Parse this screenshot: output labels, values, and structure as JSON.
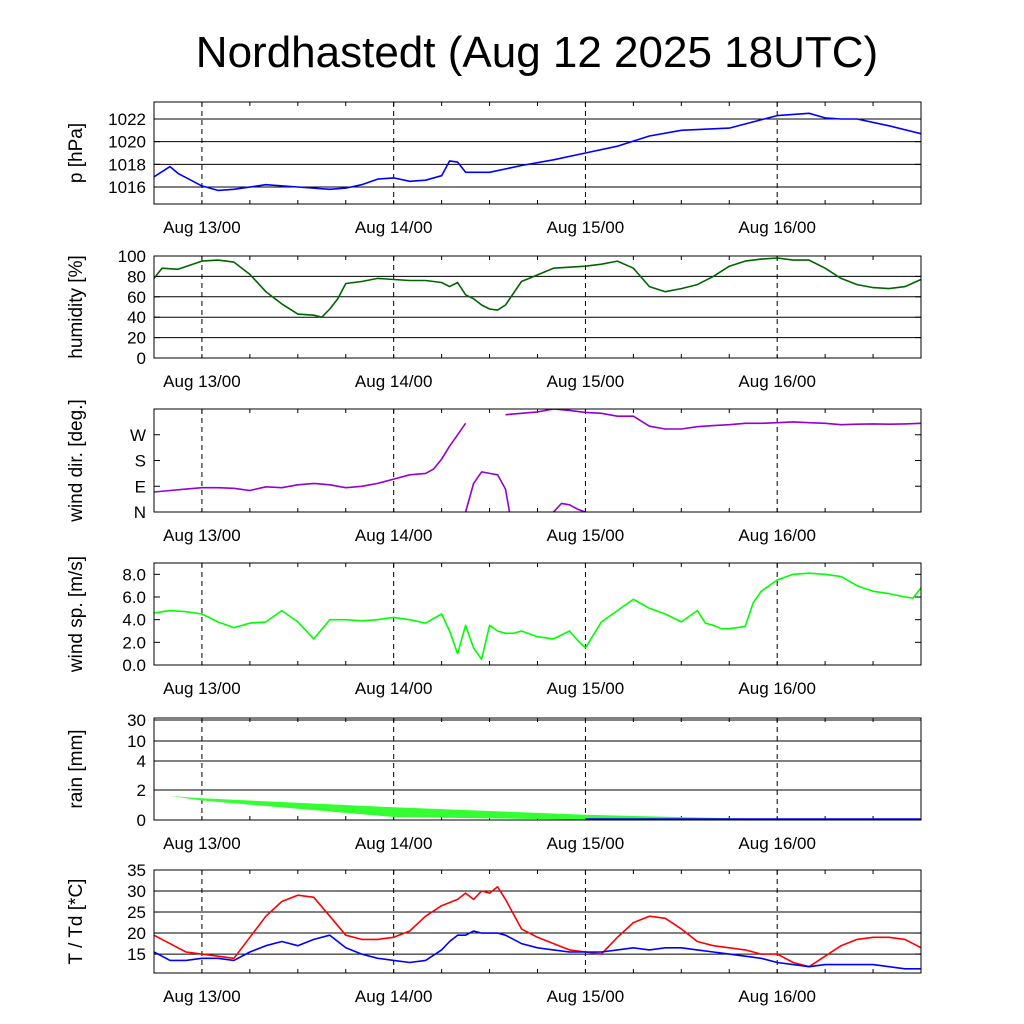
{
  "page": {
    "title": "Nordhastedt (Aug 12 2025 18UTC)"
  },
  "colors": {
    "pressure": "#0000ff",
    "humidity": "#006400",
    "wind_dir": "#9400d3",
    "wind_speed": "#00ff00",
    "rain_fill": "#33ff33",
    "temperature": "#ff0000",
    "dewpoint": "#0000ff",
    "grid": "#000000"
  },
  "chart_data": [
    {
      "type": "line",
      "ylabel": "p [hPa]",
      "x_ticks": [
        "Aug 13/00",
        "Aug 14/00",
        "Aug 15/00",
        "Aug 16/00"
      ],
      "ylim": [
        1014.5,
        1023.5
      ],
      "yticks": [
        1016,
        1018,
        1020,
        1022
      ],
      "ytick_labels": [
        "1016",
        "1018",
        "1020",
        "1022"
      ],
      "grid": true,
      "series": [
        {
          "x": [
            -6,
            -4,
            -3,
            0,
            2,
            4,
            8,
            12,
            16,
            18,
            20,
            22,
            24,
            26,
            28,
            30,
            31,
            32,
            33,
            36,
            40,
            44,
            48,
            52,
            56,
            60,
            66,
            72,
            76,
            78,
            80,
            82,
            86,
            90
          ],
          "values": [
            1016.9,
            1017.8,
            1017.2,
            1016.1,
            1015.7,
            1015.8,
            1016.2,
            1016.0,
            1015.8,
            1015.9,
            1016.2,
            1016.7,
            1016.8,
            1016.5,
            1016.6,
            1017.0,
            1018.3,
            1018.2,
            1017.3,
            1017.3,
            1017.9,
            1018.4,
            1019.0,
            1019.6,
            1020.5,
            1021.0,
            1021.2,
            1022.3,
            1022.5,
            1022.1,
            1022.0,
            1022.0,
            1021.4,
            1020.7
          ]
        }
      ]
    },
    {
      "type": "line",
      "ylabel": "humidity [%]",
      "x_ticks": [
        "Aug 13/00",
        "Aug 14/00",
        "Aug 15/00",
        "Aug 16/00"
      ],
      "ylim": [
        0,
        100
      ],
      "yticks": [
        0,
        20,
        40,
        60,
        80,
        100
      ],
      "ytick_labels": [
        "0",
        "20",
        "40",
        "60",
        "80",
        "100"
      ],
      "grid": true,
      "series": [
        {
          "x": [
            -6,
            -5,
            -3,
            0,
            2,
            4,
            6,
            8,
            10,
            12,
            14,
            15,
            16,
            17,
            18,
            20,
            22,
            24,
            26,
            28,
            30,
            31,
            32,
            33,
            34,
            35,
            36,
            37,
            38,
            40,
            44,
            48,
            50,
            52,
            54,
            56,
            58,
            60,
            62,
            64,
            66,
            68,
            70,
            72,
            74,
            76,
            78,
            80,
            82,
            84,
            86,
            88,
            90
          ],
          "values": [
            78,
            88,
            87,
            95,
            96,
            94,
            82,
            65,
            53,
            43,
            42,
            40,
            48,
            58,
            73,
            75,
            78,
            77,
            76,
            76,
            74,
            70,
            74,
            62,
            58,
            52,
            48,
            47,
            52,
            75,
            88,
            90,
            92,
            95,
            88,
            70,
            65,
            68,
            72,
            80,
            90,
            95,
            97,
            98,
            96,
            96,
            88,
            78,
            72,
            69,
            68,
            70,
            77
          ]
        }
      ]
    },
    {
      "type": "line",
      "ylabel": "wind dir. [deg.]",
      "x_ticks": [
        "Aug 13/00",
        "Aug 14/00",
        "Aug 15/00",
        "Aug 16/00"
      ],
      "ylim": [
        0,
        360
      ],
      "yticks": [
        0,
        90,
        180,
        270
      ],
      "ytick_labels": [
        "N",
        "E",
        "S",
        "W"
      ],
      "grid": false,
      "series": [
        {
          "x": [
            -6,
            -4,
            -2,
            0,
            2,
            4,
            6,
            8,
            10,
            12,
            14,
            16,
            18,
            20,
            22,
            24,
            26,
            28,
            29,
            30,
            31,
            32,
            33
          ],
          "values": [
            70,
            75,
            80,
            85,
            85,
            83,
            75,
            88,
            85,
            95,
            100,
            95,
            85,
            90,
            100,
            115,
            130,
            135,
            150,
            185,
            230,
            270,
            310
          ]
        },
        {
          "x": [
            38,
            40,
            42,
            44,
            46,
            48,
            50,
            52,
            54,
            56,
            58,
            60,
            62,
            64,
            66,
            68,
            70,
            72,
            74,
            76,
            78,
            80,
            82,
            84,
            86,
            88,
            90
          ],
          "values": [
            340,
            345,
            350,
            360,
            355,
            348,
            345,
            335,
            335,
            300,
            290,
            290,
            298,
            302,
            305,
            310,
            310,
            312,
            315,
            312,
            310,
            305,
            307,
            308,
            307,
            308,
            310
          ]
        },
        {
          "x": [
            33,
            34,
            35,
            36,
            37,
            38,
            38.5
          ],
          "values": [
            0,
            100,
            140,
            135,
            130,
            80,
            0
          ]
        },
        {
          "x": [
            44,
            45,
            46,
            47,
            48
          ],
          "values": [
            0,
            30,
            25,
            10,
            0
          ]
        }
      ]
    },
    {
      "type": "line",
      "ylabel": "wind sp. [m/s]",
      "x_ticks": [
        "Aug 13/00",
        "Aug 14/00",
        "Aug 15/00",
        "Aug 16/00"
      ],
      "ylim": [
        0,
        9
      ],
      "yticks": [
        0,
        2,
        4,
        6,
        8
      ],
      "ytick_labels": [
        "0.0",
        "2.0",
        "4.0",
        "6.0",
        "8.0"
      ],
      "grid": false,
      "series": [
        {
          "x": [
            -6,
            -4,
            -2,
            0,
            2,
            4,
            6,
            8,
            10,
            12,
            14,
            16,
            18,
            20,
            22,
            24,
            26,
            28,
            30,
            31,
            32,
            33,
            34,
            35,
            36,
            37,
            38,
            39,
            40,
            42,
            44,
            46,
            47,
            48,
            50,
            52,
            54,
            56,
            58,
            60,
            62,
            63,
            64,
            65,
            66,
            67,
            68,
            69,
            70,
            72,
            74,
            76,
            78,
            80,
            82,
            84,
            86,
            88,
            89,
            90
          ],
          "values": [
            4.6,
            4.8,
            4.7,
            4.5,
            3.8,
            3.3,
            3.7,
            3.8,
            4.8,
            3.8,
            2.3,
            4.0,
            4.0,
            3.9,
            4.0,
            4.2,
            4.0,
            3.7,
            4.5,
            3.0,
            1.0,
            3.5,
            1.5,
            0.5,
            3.5,
            3.0,
            2.8,
            2.8,
            3.0,
            2.5,
            2.3,
            3.0,
            2.2,
            1.5,
            3.8,
            4.8,
            5.8,
            5.0,
            4.5,
            3.8,
            4.8,
            3.7,
            3.5,
            3.2,
            3.2,
            3.3,
            3.4,
            5.5,
            6.5,
            7.5,
            8.0,
            8.1,
            8.0,
            7.8,
            7.0,
            6.5,
            6.3,
            6.0,
            5.9,
            6.8
          ]
        }
      ]
    },
    {
      "type": "area",
      "ylabel": "rain [mm]",
      "x_ticks": [
        "Aug 13/00",
        "Aug 14/00",
        "Aug 15/00",
        "Aug 16/00"
      ],
      "ylim": [
        0,
        30
      ],
      "yticks": [
        0,
        2,
        4,
        10,
        30
      ],
      "ytick_labels": [
        "0",
        "2",
        "4",
        "10",
        "30"
      ],
      "grid": true,
      "series": [
        {
          "name": "upper",
          "x": [
            -4,
            0,
            24,
            48,
            72,
            90
          ],
          "values": [
            1.6,
            1.45,
            0.85,
            0.35,
            0.05,
            0.0
          ]
        },
        {
          "name": "lower",
          "x": [
            -4,
            0,
            24,
            48,
            72,
            90
          ],
          "values": [
            1.6,
            1.3,
            0.2,
            0.02,
            0.0,
            0.0
          ]
        }
      ]
    },
    {
      "type": "line",
      "ylabel": "T / Td [*C]",
      "x_ticks": [
        "Aug 13/00",
        "Aug 14/00",
        "Aug 15/00",
        "Aug 16/00"
      ],
      "ylim": [
        10.5,
        35
      ],
      "yticks": [
        15,
        20,
        25,
        30,
        35
      ],
      "ytick_labels": [
        "15",
        "20",
        "25",
        "30",
        "35"
      ],
      "grid": true,
      "series": [
        {
          "x": [
            -6,
            -5,
            -4,
            -3,
            -2,
            0,
            2,
            4,
            6,
            8,
            10,
            12,
            14,
            16,
            18,
            20,
            22,
            24,
            26,
            28,
            30,
            32,
            33,
            34,
            35,
            36,
            37,
            38,
            40,
            42,
            44,
            46,
            48,
            50,
            52,
            54,
            56,
            58,
            60,
            62,
            64,
            66,
            68,
            70,
            72,
            74,
            76,
            78,
            80,
            82,
            84,
            86,
            88,
            90
          ],
          "values": [
            19.5,
            18.5,
            17.5,
            16.5,
            15.5,
            15.0,
            14.5,
            14.0,
            19.0,
            24.0,
            27.5,
            29.0,
            28.5,
            24.0,
            19.5,
            18.5,
            18.5,
            19.0,
            20.5,
            24.0,
            26.5,
            28.0,
            29.5,
            28.0,
            30.0,
            29.5,
            31.0,
            28.0,
            21.0,
            19.0,
            17.5,
            16.0,
            15.5,
            15.0,
            19.0,
            22.5,
            24.0,
            23.5,
            21.0,
            18.0,
            17.0,
            16.5,
            16.0,
            15.0,
            15.0,
            13.0,
            12.0,
            14.5,
            17.0,
            18.5,
            19.0,
            19.0,
            18.5,
            16.5
          ]
        },
        {
          "x": [
            -6,
            -4,
            -2,
            0,
            2,
            4,
            6,
            8,
            10,
            12,
            14,
            16,
            18,
            20,
            22,
            24,
            26,
            28,
            30,
            31,
            32,
            33,
            34,
            35,
            36,
            37,
            38,
            40,
            42,
            44,
            46,
            48,
            50,
            52,
            54,
            56,
            58,
            60,
            62,
            64,
            66,
            68,
            70,
            72,
            74,
            76,
            78,
            80,
            82,
            84,
            86,
            88,
            90
          ],
          "values": [
            15.5,
            13.5,
            13.5,
            14.0,
            14.0,
            13.5,
            15.5,
            17.0,
            18.0,
            17.0,
            18.5,
            19.5,
            16.5,
            15.0,
            14.0,
            13.5,
            13.0,
            13.5,
            16.0,
            18.0,
            19.5,
            19.5,
            20.5,
            20.0,
            20.0,
            20.0,
            19.5,
            17.5,
            16.5,
            16.0,
            15.5,
            15.5,
            15.5,
            16.0,
            16.5,
            16.0,
            16.5,
            16.5,
            16.0,
            15.5,
            15.0,
            14.5,
            14.0,
            13.0,
            12.5,
            12.0,
            12.5,
            12.5,
            12.5,
            12.5,
            12.0,
            11.5,
            11.5
          ]
        }
      ]
    }
  ]
}
